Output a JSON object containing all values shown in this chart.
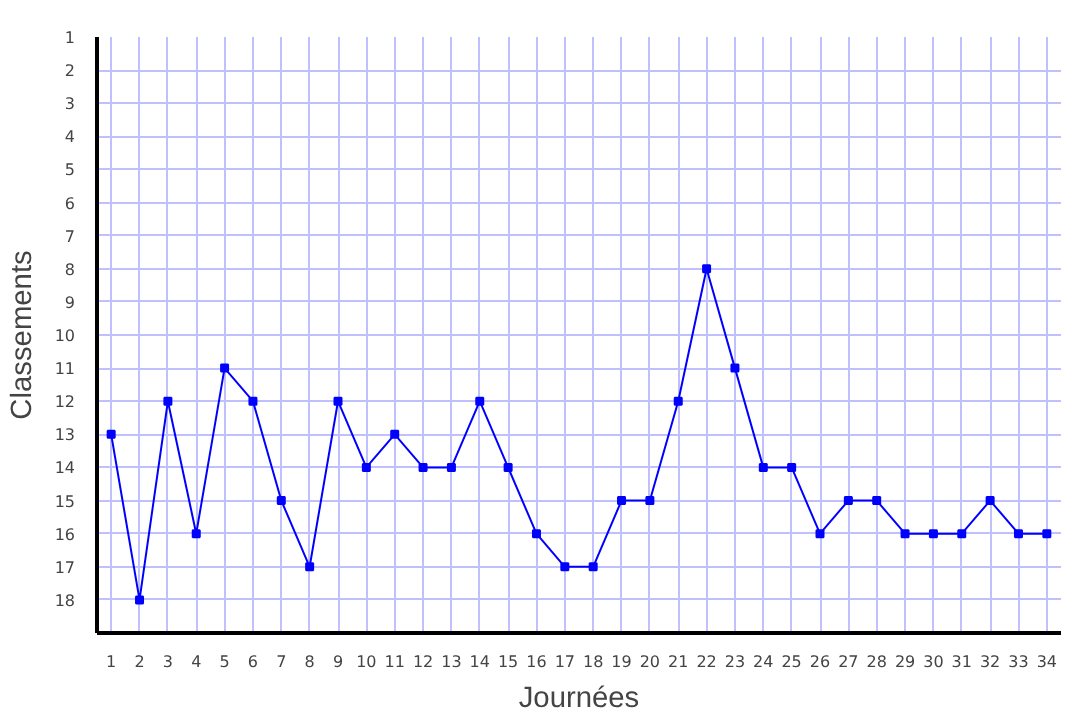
{
  "chart_data": {
    "type": "line",
    "xlabel": "Journées",
    "ylabel": "Classements",
    "x": [
      1,
      2,
      3,
      4,
      5,
      6,
      7,
      8,
      9,
      10,
      11,
      12,
      13,
      14,
      15,
      16,
      17,
      18,
      19,
      20,
      21,
      22,
      23,
      24,
      25,
      26,
      27,
      28,
      29,
      30,
      31,
      32,
      33,
      34
    ],
    "series": [
      {
        "color": "#0000ff",
        "values": [
          13,
          18,
          12,
          16,
          11,
          12,
          15,
          17,
          12,
          14,
          13,
          14,
          14,
          12,
          14,
          16,
          17,
          17,
          15,
          15,
          12,
          8,
          11,
          14,
          14,
          16,
          15,
          15,
          16,
          16,
          16,
          15,
          16,
          16
        ]
      }
    ],
    "xlim": [
      0.5,
      34.5
    ],
    "xticks": [
      1,
      2,
      3,
      4,
      5,
      6,
      7,
      8,
      9,
      10,
      11,
      12,
      13,
      14,
      15,
      16,
      17,
      18,
      19,
      20,
      21,
      22,
      23,
      24,
      25,
      26,
      27,
      28,
      29,
      30,
      31,
      32,
      33,
      34
    ],
    "ylim": [
      19,
      1
    ],
    "yticks": [
      1,
      2,
      3,
      4,
      5,
      6,
      7,
      8,
      9,
      10,
      11,
      12,
      13,
      14,
      15,
      16,
      17,
      18
    ],
    "grid": true,
    "marker": "square",
    "line_style": "solid"
  }
}
